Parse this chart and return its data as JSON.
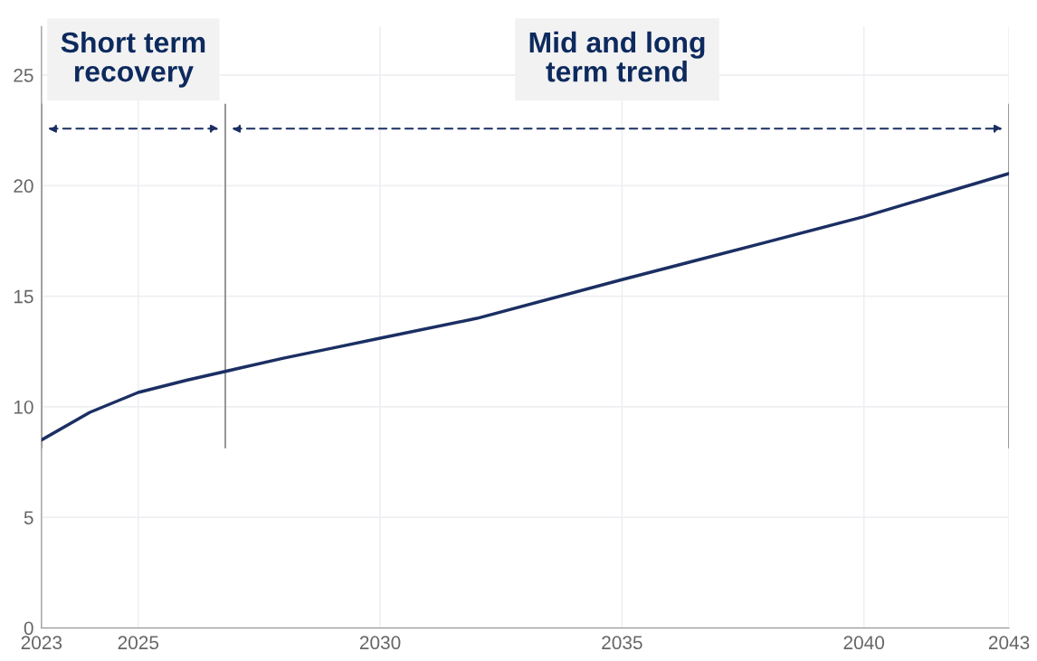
{
  "chart_data": {
    "type": "line",
    "x": [
      2023,
      2024,
      2025,
      2026,
      2027,
      2028,
      2029,
      2030,
      2032,
      2035,
      2038,
      2040,
      2041,
      2043
    ],
    "series": [
      {
        "color": "#1b2f63",
        "values": [
          8.5,
          9.75,
          10.65,
          11.2,
          11.7,
          12.2,
          12.65,
          13.1,
          14.0,
          15.75,
          17.45,
          18.6,
          19.25,
          20.55
        ]
      }
    ],
    "xlim": [
      2023,
      2043
    ],
    "xticks": [
      2023,
      2025,
      2030,
      2035,
      2040,
      2043
    ],
    "ylim": [
      0,
      27.2
    ],
    "yticks": [
      0,
      5,
      10,
      15,
      20,
      25
    ],
    "grid": true,
    "marker": "none",
    "line_style": "solid",
    "ref_lines": [
      {
        "axis": "x",
        "value": 2023,
        "color": "#8c8c8c"
      },
      {
        "axis": "x",
        "value": 2026.8,
        "color": "#8c8c8c"
      },
      {
        "axis": "x",
        "value": 2043,
        "color": "#8c8c8c"
      }
    ],
    "annotations": [
      "Short term\nrecovery",
      "Mid and long\nterm trend"
    ]
  }
}
